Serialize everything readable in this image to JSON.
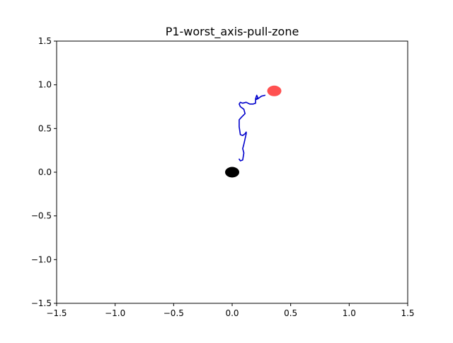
{
  "chart_data": {
    "type": "line",
    "title": "P1-worst_axis-pull-zone",
    "xlabel": "",
    "ylabel": "",
    "xlim": [
      -1.5,
      1.5
    ],
    "ylim": [
      -1.5,
      1.5
    ],
    "xticks": [
      -1.5,
      -1.0,
      -0.5,
      0.0,
      0.5,
      1.0,
      1.5
    ],
    "yticks": [
      -1.5,
      -1.0,
      -0.5,
      0.0,
      0.5,
      1.0,
      1.5
    ],
    "xtick_labels": [
      "−1.5",
      "−1.0",
      "−0.5",
      "0.0",
      "0.5",
      "1.0",
      "1.5"
    ],
    "ytick_labels": [
      "−1.5",
      "−1.0",
      "−0.5",
      "0.0",
      "0.5",
      "1.0",
      "1.5"
    ],
    "grid": false,
    "series": [
      {
        "color": "#0000cc",
        "x": [
          0.06,
          0.07,
          0.09,
          0.1,
          0.09,
          0.1,
          0.11,
          0.12,
          0.12,
          0.11,
          0.09,
          0.07,
          0.06,
          0.06,
          0.08,
          0.11,
          0.1,
          0.07,
          0.06,
          0.07,
          0.09,
          0.12,
          0.15,
          0.18,
          0.2,
          0.2,
          0.21,
          0.22,
          0.2,
          0.22,
          0.25,
          0.28
        ],
        "y": [
          0.15,
          0.13,
          0.14,
          0.22,
          0.27,
          0.32,
          0.38,
          0.44,
          0.46,
          0.44,
          0.42,
          0.43,
          0.52,
          0.6,
          0.63,
          0.67,
          0.72,
          0.75,
          0.78,
          0.8,
          0.79,
          0.8,
          0.78,
          0.78,
          0.79,
          0.84,
          0.88,
          0.85,
          0.83,
          0.84,
          0.87,
          0.88
        ]
      }
    ],
    "points": [
      {
        "name": "",
        "x": 0.0,
        "y": 0.0,
        "color": "#000000"
      },
      {
        "name": "",
        "x": 0.36,
        "y": 0.93,
        "color": "#ff3333"
      }
    ]
  }
}
